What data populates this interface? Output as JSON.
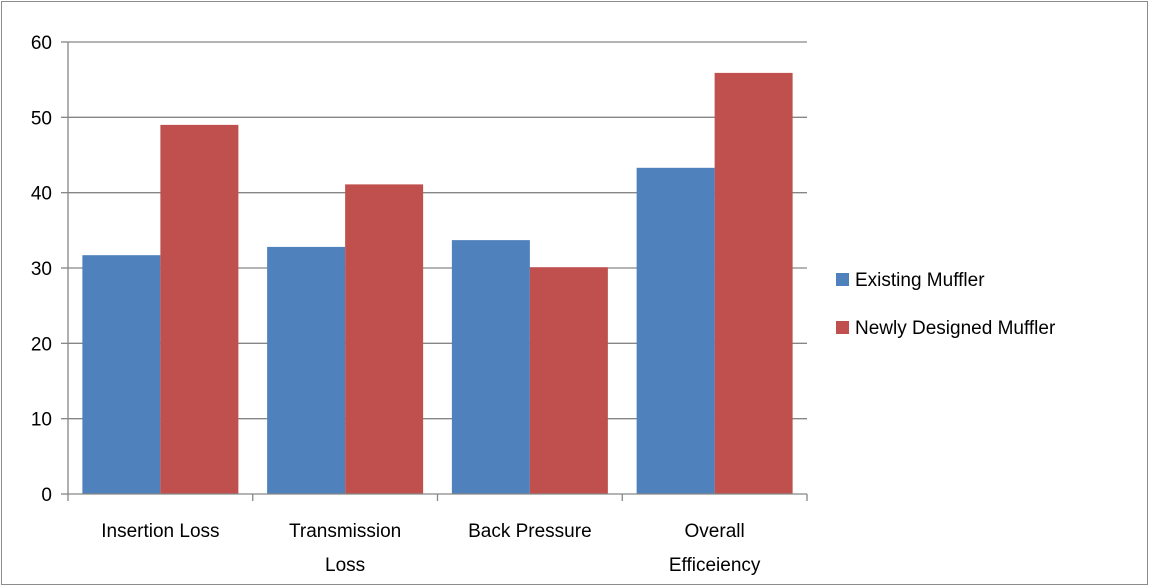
{
  "chart_data": {
    "type": "bar",
    "title": "",
    "xlabel": "",
    "ylabel": "",
    "categories": [
      [
        "Insertion Loss"
      ],
      [
        "Transmission",
        "Loss"
      ],
      [
        "Back Pressure"
      ],
      [
        "Overall",
        "Efficeiency"
      ]
    ],
    "series": [
      {
        "name": "Existing Muffler",
        "color": "#4F81BD",
        "values": [
          31.7,
          32.8,
          33.7,
          43.3
        ]
      },
      {
        "name": "Newly Designed Muffler",
        "color": "#C0504D",
        "values": [
          49.0,
          41.1,
          30.1,
          55.9
        ]
      }
    ],
    "ylim": [
      0,
      60
    ],
    "yticks": [
      0,
      10,
      20,
      30,
      40,
      50,
      60
    ],
    "grid": true,
    "legend_position": "right"
  }
}
